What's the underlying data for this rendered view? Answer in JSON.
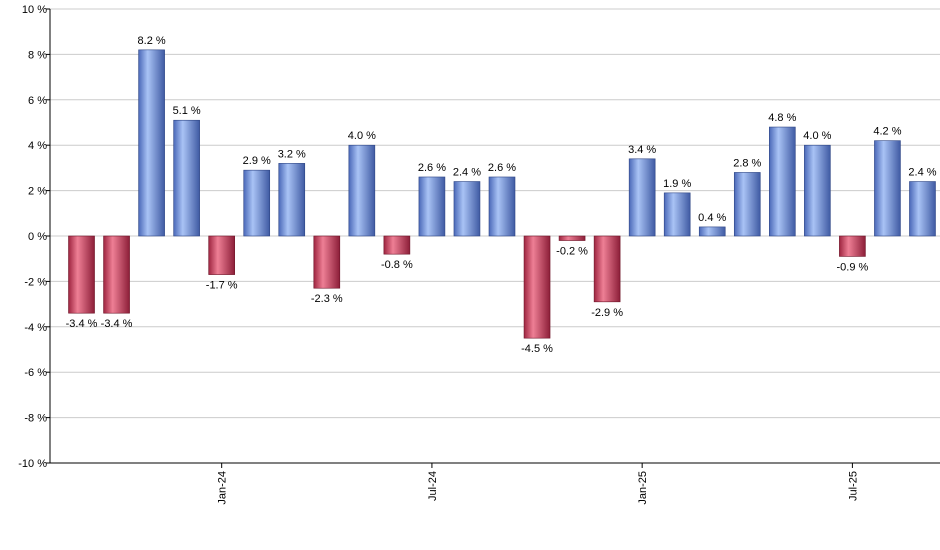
{
  "chart_data": {
    "type": "bar",
    "title": "",
    "xlabel": "",
    "ylabel": "",
    "ylim": [
      -10,
      10
    ],
    "y_ticks": [
      10,
      8,
      6,
      4,
      2,
      0,
      -2,
      -4,
      -6,
      -8,
      -10
    ],
    "y_tick_suffix": " %",
    "grid": true,
    "legend": "none",
    "colors": {
      "positive": "#7f9fe0",
      "negative": "#c8405a"
    },
    "values": [
      -3.4,
      -3.4,
      8.2,
      5.1,
      -1.7,
      2.9,
      3.2,
      -2.3,
      4.0,
      -0.8,
      2.6,
      2.4,
      2.6,
      -4.5,
      -0.2,
      -2.9,
      3.4,
      1.9,
      0.4,
      2.8,
      4.8,
      4.0,
      -0.9,
      4.2,
      2.4
    ],
    "labels": [
      "-3.4 %",
      "-3.4 %",
      "8.2 %",
      "5.1 %",
      "-1.7 %",
      "2.9 %",
      "3.2 %",
      "-2.3 %",
      "4.0 %",
      "-0.8 %",
      "2.6 %",
      "2.4 %",
      "2.6 %",
      "-4.5 %",
      "-0.2 %",
      "-2.9 %",
      "3.4 %",
      "1.9 %",
      "0.4 %",
      "2.8 %",
      "4.8 %",
      "4.0 %",
      "-0.9 %",
      "4.2 %",
      "2.4 %"
    ],
    "x_ticks": [
      {
        "label": "Jan-24",
        "index": 4
      },
      {
        "label": "Jul-24",
        "index": 10
      },
      {
        "label": "Jan-25",
        "index": 16
      },
      {
        "label": "Jul-25",
        "index": 22
      }
    ]
  }
}
